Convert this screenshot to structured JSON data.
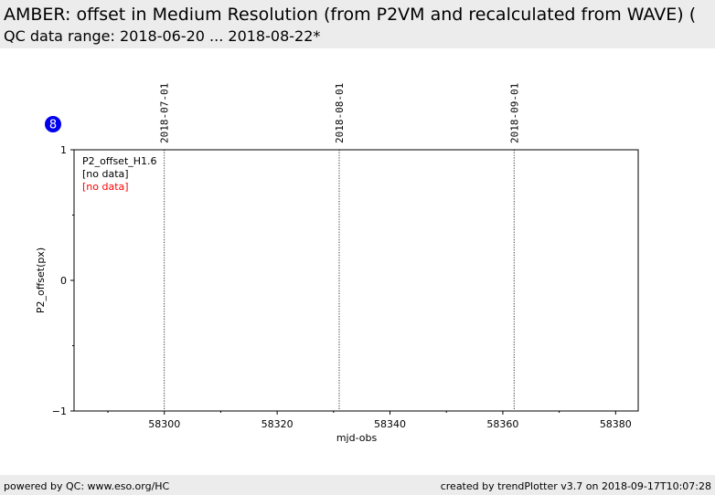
{
  "header": {
    "title": "AMBER: offset in Medium Resolution (from P2VM and recalculated from WAVE) (",
    "subtitle": "QC data range: 2018-06-20 ... 2018-08-22*"
  },
  "badge": "8",
  "footer": {
    "left": "powered by QC: www.eso.org/HC",
    "right": "created by trendPlotter v3.7 on 2018-09-17T10:07:28"
  },
  "chart_data": {
    "type": "scatter",
    "xlabel": "mjd-obs",
    "ylabel": "P2_offset(px)",
    "xlim": [
      58284,
      58384
    ],
    "ylim": [
      -1,
      1
    ],
    "xticks": [
      58300,
      58320,
      58340,
      58360,
      58380
    ],
    "xtick_labels": [
      "58300",
      "58320",
      "58340",
      "58360",
      "58380"
    ],
    "yticks": [
      1,
      0,
      -1
    ],
    "ytick_labels": [
      "1",
      "0",
      "−1"
    ],
    "date_markers": [
      {
        "x": 58300,
        "label": "2018-07-01"
      },
      {
        "x": 58331,
        "label": "2018-08-01"
      },
      {
        "x": 58362,
        "label": "2018-09-01"
      }
    ],
    "legend": [
      {
        "text": "P2_offset_H1.6",
        "color": "#000000"
      },
      {
        "text": "[no data]",
        "color": "#000000"
      },
      {
        "text": "[no data]",
        "color": "#ff0000"
      }
    ],
    "legend_position": "top-left",
    "series": [],
    "grid": false,
    "colors": {
      "badge": "#0000ee",
      "no_data_alt": "#ff0000"
    }
  }
}
